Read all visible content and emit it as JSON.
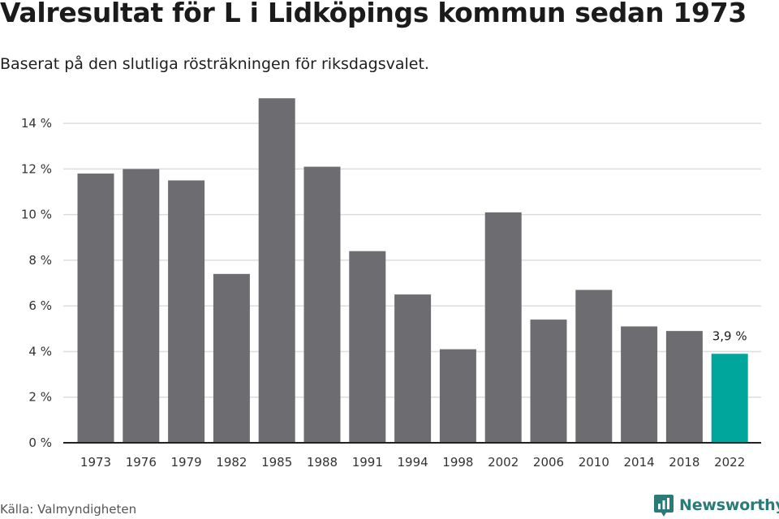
{
  "title": "Valresultat för L i Lidköpings kommun sedan 1973",
  "subtitle": "Baserat på den slutliga rösträkningen för riksdagsvalet.",
  "source": "Källa: Valmyndigheten",
  "brand": {
    "name": "Newsworthy",
    "icon": "newsworthy-logo-icon",
    "color": "#2a7a78"
  },
  "colors": {
    "bar": "#6d6c71",
    "highlight": "#00a59b",
    "grid": "#dddddd",
    "axis": "#222222"
  },
  "chart_data": {
    "type": "bar",
    "title": "Valresultat för L i Lidköpings kommun sedan 1973",
    "subtitle": "Baserat på den slutliga rösträkningen för riksdagsvalet.",
    "xlabel": "",
    "ylabel": "",
    "categories": [
      "1973",
      "1976",
      "1979",
      "1982",
      "1985",
      "1988",
      "1991",
      "1994",
      "1998",
      "2002",
      "2006",
      "2010",
      "2014",
      "2018",
      "2022"
    ],
    "values": [
      11.8,
      12.0,
      11.5,
      7.4,
      15.1,
      12.1,
      8.4,
      6.5,
      4.1,
      10.1,
      5.4,
      6.7,
      5.1,
      4.9,
      3.9
    ],
    "ylim": [
      0,
      15
    ],
    "yticks": [
      0,
      2,
      4,
      6,
      8,
      10,
      12,
      14
    ],
    "ytick_labels": [
      "0 %",
      "2 %",
      "4 %",
      "6 %",
      "8 %",
      "10 %",
      "12 %",
      "14 %"
    ],
    "highlight_category": "2022",
    "data_labels": [
      {
        "category": "2022",
        "text": "3,9 %"
      }
    ],
    "grid": true,
    "legend": "none"
  }
}
